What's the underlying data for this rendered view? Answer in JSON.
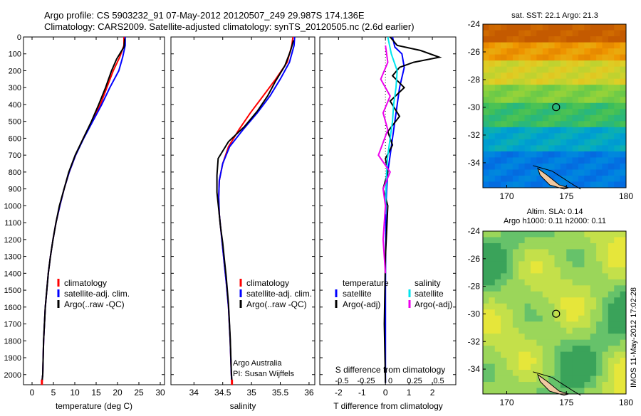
{
  "header": {
    "line1": "Argo profile: CS 5903232_91 07-May-2012 20120507_249 29.987S 174.136E",
    "line2": "Climatology: CARS2009. Satellite-adjusted climatology: synTS_20120505.nc (2.6d earlier)"
  },
  "side_label": "IMOS 11-May-2012 17:02:28",
  "colors": {
    "climatology": "#ff0000",
    "satellite": "#0000ff",
    "argo": "#000000",
    "sal_satellite": "#00e5ee",
    "sal_argo": "#ee00ee"
  },
  "chart_data": [
    {
      "type": "line",
      "id": "temperature",
      "xlabel": "temperature (deg C)",
      "ylabel": "",
      "xlim": [
        -2,
        31
      ],
      "ylim": [
        2060,
        0
      ],
      "xticks": [
        0,
        5,
        10,
        15,
        20,
        25,
        30
      ],
      "yticks": [
        0,
        100,
        200,
        300,
        400,
        500,
        600,
        700,
        800,
        900,
        1000,
        1100,
        1200,
        1300,
        1400,
        1500,
        1600,
        1700,
        1800,
        1900,
        2000
      ],
      "legend": [
        "climatology",
        "satellite-adj. clim.",
        "Argo(..raw -QC)"
      ],
      "series": [
        {
          "name": "climatology",
          "x": [
            21.5,
            21.5,
            20.5,
            19,
            17.5,
            16,
            14,
            12,
            10.2,
            8.7,
            7.5,
            6.5,
            5.6,
            4.9,
            4.3,
            3.8,
            3.1,
            2.7,
            2.5,
            2.3
          ],
          "y": [
            0,
            50,
            120,
            200,
            300,
            400,
            500,
            600,
            700,
            800,
            900,
            1000,
            1100,
            1200,
            1300,
            1400,
            1600,
            1800,
            2000,
            2050
          ]
        },
        {
          "name": "satellite-adj. clim.",
          "x": [
            21.8,
            21.8,
            21.2,
            20.3,
            18.2,
            16.3,
            14.2,
            12.1,
            10.2,
            8.7,
            7.5,
            6.5,
            5.6,
            4.9,
            4.3,
            3.8,
            3.1,
            2.7,
            2.5,
            2.3
          ],
          "y": [
            0,
            50,
            120,
            200,
            300,
            400,
            500,
            600,
            700,
            800,
            900,
            1000,
            1100,
            1200,
            1300,
            1400,
            1600,
            1800,
            2000,
            2050
          ]
        },
        {
          "name": "Argo(..raw -QC)",
          "x": [
            21.7,
            21.5,
            19.8,
            18.6,
            17.2,
            15.6,
            13.9,
            12,
            10.1,
            8.6,
            7.5,
            6.4,
            5.6,
            4.9,
            4.3,
            3.8,
            3.1,
            2.7,
            2.5,
            2.3
          ],
          "y": [
            10,
            60,
            130,
            200,
            300,
            400,
            500,
            600,
            700,
            800,
            900,
            1000,
            1100,
            1200,
            1300,
            1400,
            1600,
            1800,
            2000,
            2050
          ]
        }
      ]
    },
    {
      "type": "line",
      "id": "salinity",
      "xlabel": "salinity",
      "xlim": [
        33.6,
        36.1
      ],
      "ylim": [
        2060,
        0
      ],
      "xticks": [
        34,
        34.5,
        35,
        35.5,
        36
      ],
      "legend": [
        "climatology",
        "satellite-adj. clim.",
        "Argo(..raw -QC)"
      ],
      "annotation": [
        "Argo Australia",
        "PI: Susan Wijffels"
      ],
      "series": [
        {
          "name": "climatology",
          "x": [
            35.72,
            35.7,
            35.62,
            35.42,
            35.2,
            34.98,
            34.78,
            34.6,
            34.5,
            34.44,
            34.43,
            34.44,
            34.47,
            34.5,
            34.53,
            34.56,
            34.6,
            34.63,
            34.65,
            34.66
          ],
          "y": [
            0,
            50,
            150,
            250,
            350,
            450,
            550,
            650,
            750,
            850,
            950,
            1050,
            1150,
            1250,
            1350,
            1450,
            1600,
            1800,
            2000,
            2050
          ]
        },
        {
          "name": "satellite-adj. clim.",
          "x": [
            35.75,
            35.74,
            35.66,
            35.5,
            35.32,
            35.1,
            34.85,
            34.62,
            34.5,
            34.44,
            34.43,
            34.44,
            34.47,
            34.5,
            34.53,
            34.56,
            34.6,
            34.63,
            34.65,
            34.66
          ],
          "y": [
            0,
            50,
            150,
            250,
            350,
            450,
            550,
            650,
            750,
            850,
            950,
            1050,
            1150,
            1250,
            1350,
            1450,
            1600,
            1800,
            2000,
            2050
          ]
        },
        {
          "name": "Argo(..raw -QC)",
          "x": [
            35.73,
            35.68,
            35.58,
            35.42,
            35.28,
            35.1,
            34.88,
            34.6,
            34.42,
            34.4,
            34.4,
            34.43,
            34.46,
            34.5,
            34.53,
            34.56,
            34.6,
            34.63,
            34.65,
            34.66
          ],
          "y": [
            20,
            80,
            170,
            260,
            350,
            440,
            530,
            620,
            720,
            820,
            920,
            1020,
            1120,
            1220,
            1320,
            1420,
            1580,
            1780,
            1980,
            2040
          ]
        }
      ]
    },
    {
      "type": "line",
      "id": "difference",
      "xlabel": "T difference from climatology",
      "top_label": "S difference from climatology",
      "xlim": [
        -2.8,
        3.0
      ],
      "ylim": [
        2060,
        0
      ],
      "xticks": [
        -2,
        -1,
        0,
        1,
        2
      ],
      "top_ticks": [
        "-0.5",
        "-0.25",
        "0",
        "0.25",
        "0.5"
      ],
      "legend_headers": [
        "temperature",
        "salinity"
      ],
      "legend": [
        "satellite",
        "Argo(-adj)",
        "satellite",
        "Argo(-adj)"
      ],
      "series": [
        {
          "name": "satellite",
          "x": [
            0.3,
            0.4,
            0.7,
            0.8,
            0.6,
            0.5,
            0.4,
            0.3,
            0.2,
            0.1,
            0.05,
            0.02,
            0.01,
            0,
            0,
            0
          ],
          "y": [
            0,
            60,
            100,
            180,
            300,
            400,
            500,
            600,
            700,
            800,
            900,
            1000,
            1200,
            1500,
            1800,
            2050
          ]
        },
        {
          "name": "Argo(-adj)",
          "x": [
            0.2,
            0.5,
            1.5,
            2.3,
            1.2,
            0.6,
            0.3,
            0.8,
            0.2,
            0.6,
            0.1,
            0.3,
            0,
            0.1,
            -0.1,
            0.1,
            0,
            -0.05,
            0
          ],
          "y": [
            0,
            50,
            80,
            120,
            150,
            180,
            230,
            300,
            380,
            470,
            560,
            640,
            720,
            800,
            900,
            1000,
            1300,
            1700,
            2050
          ]
        },
        {
          "name": "satellite",
          "x": [
            0.1,
            0.25,
            0.5,
            0.45,
            0.35,
            0.3,
            0.2,
            0.1,
            0.05,
            0.02,
            0
          ],
          "y": [
            0,
            100,
            200,
            300,
            400,
            500,
            600,
            700,
            800,
            900,
            1050
          ]
        },
        {
          "name": "Argo(-adj)",
          "x": [
            0,
            0.1,
            -0.2,
            0.2,
            -0.1,
            0.1,
            -0.3,
            0.2,
            -0.1,
            0,
            -0.1,
            0
          ],
          "y": [
            50,
            150,
            250,
            350,
            450,
            550,
            700,
            800,
            900,
            1000,
            1200,
            1400
          ]
        }
      ]
    }
  ],
  "maps": [
    {
      "title": "sat. SST: 22.1  Argo: 21.3",
      "xlim": [
        168,
        180
      ],
      "ylim": [
        -35.8,
        -24
      ],
      "xticks": [
        170,
        175,
        180
      ],
      "yticks": [
        -24,
        -26,
        -28,
        -30,
        -32,
        -34
      ],
      "marker": {
        "lon": 174.136,
        "lat": -29.987
      }
    },
    {
      "title": "Altim. SLA: 0.14",
      "subtitle": "Argo h1000: 0.11  h2000: 0.11",
      "xlim": [
        168,
        180
      ],
      "ylim": [
        -35.8,
        -24
      ],
      "xticks": [
        170,
        175,
        180
      ],
      "yticks": [
        -24,
        -26,
        -28,
        -30,
        -32,
        -34
      ],
      "marker": {
        "lon": 174.136,
        "lat": -29.987
      }
    }
  ]
}
